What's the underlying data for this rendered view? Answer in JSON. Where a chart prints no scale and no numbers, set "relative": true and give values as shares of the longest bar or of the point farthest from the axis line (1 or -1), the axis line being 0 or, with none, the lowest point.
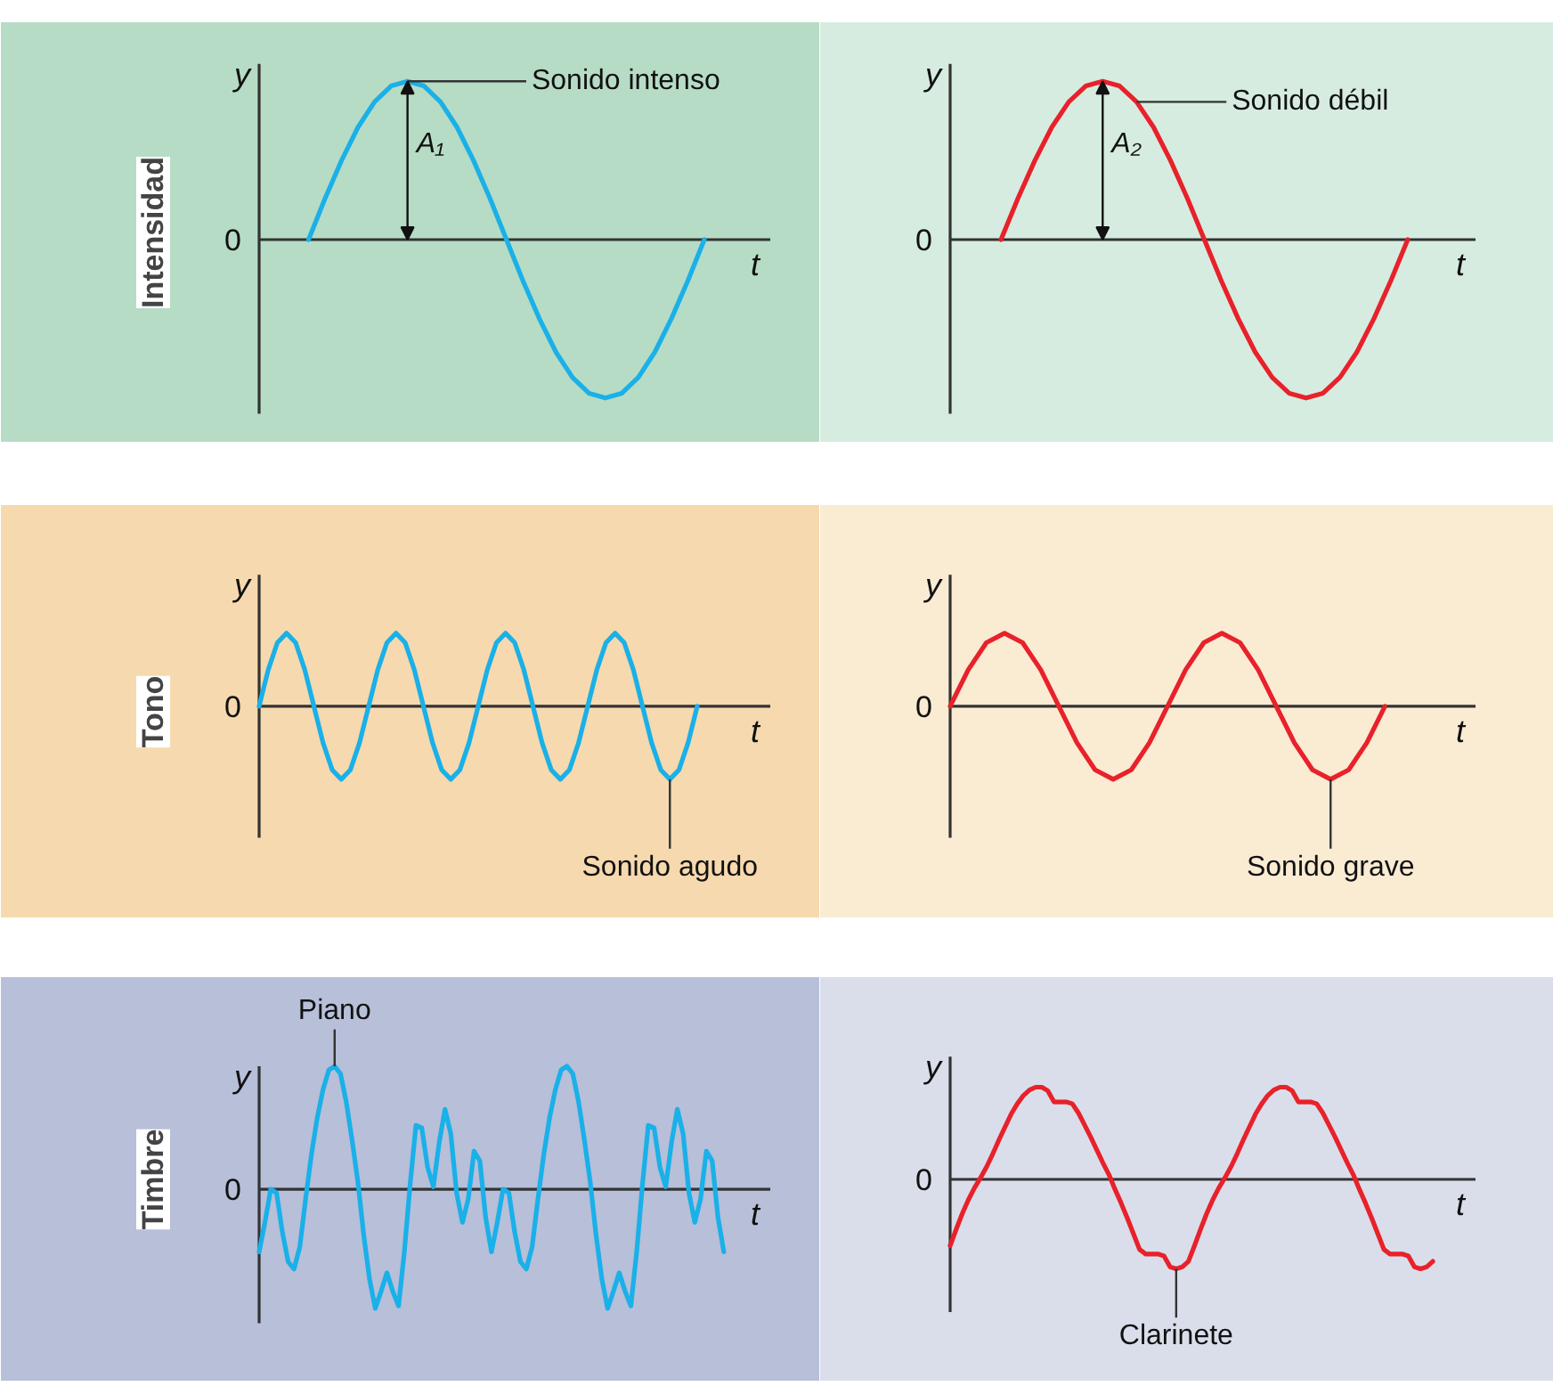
{
  "chart_data": [
    {
      "type": "line",
      "relative": true,
      "tick_labels": false,
      "title": "Intensidad",
      "xlabel": "t",
      "ylabel": "y",
      "categories": [
        null,
        null,
        null,
        null,
        null,
        null,
        null,
        null,
        null,
        null,
        null,
        null,
        null,
        null,
        null,
        null,
        null,
        null,
        null,
        null,
        null,
        null,
        null,
        null,
        null,
        null,
        null,
        null,
        null,
        null,
        null,
        null
      ],
      "series": [
        {
          "color": "#1ab0e8",
          "values": [
            null,
            null,
            null,
            0,
            0.26,
            0.5,
            0.71,
            0.87,
            0.97,
            1,
            0.97,
            0.87,
            0.71,
            0.5,
            0.26,
            0,
            -0.26,
            -0.5,
            -0.71,
            -0.87,
            -0.97,
            -1,
            -0.97,
            -0.87,
            -0.71,
            -0.5,
            -0.26,
            0,
            null,
            null,
            null,
            null
          ]
        }
      ],
      "annotations": [
        "Sonido intenso",
        "A₁",
        "0"
      ]
    },
    {
      "type": "line",
      "relative": true,
      "tick_labels": false,
      "xlabel": "t",
      "ylabel": "y",
      "categories": [
        null,
        null,
        null,
        null,
        null,
        null,
        null,
        null,
        null,
        null,
        null,
        null,
        null,
        null,
        null,
        null,
        null,
        null,
        null,
        null,
        null,
        null,
        null,
        null,
        null,
        null,
        null,
        null,
        null,
        null,
        null,
        null
      ],
      "series": [
        {
          "color": "#e8212b",
          "values": [
            null,
            null,
            null,
            0,
            0.26,
            0.5,
            0.71,
            0.87,
            0.97,
            1,
            0.97,
            0.87,
            0.71,
            0.5,
            0.26,
            0,
            -0.26,
            -0.5,
            -0.71,
            -0.87,
            -0.97,
            -1,
            -0.97,
            -0.87,
            -0.71,
            -0.5,
            -0.26,
            0,
            null,
            null,
            null,
            null
          ]
        }
      ],
      "annotations": [
        "Sonido débil",
        "A₂",
        "0"
      ]
    },
    {
      "type": "line",
      "relative": true,
      "tick_labels": false,
      "title": "Tono",
      "xlabel": "t",
      "ylabel": "y",
      "categories": [
        null,
        null,
        null,
        null,
        null,
        null,
        null,
        null,
        null,
        null,
        null,
        null,
        null,
        null,
        null,
        null,
        null,
        null,
        null,
        null,
        null,
        null,
        null,
        null,
        null,
        null,
        null,
        null,
        null,
        null,
        null,
        null,
        null,
        null,
        null,
        null,
        null,
        null,
        null,
        null,
        null,
        null,
        null,
        null,
        null,
        null,
        null,
        null,
        null,
        null,
        null,
        null,
        null,
        null,
        null,
        null,
        null
      ],
      "series": [
        {
          "color": "#1ab0e8",
          "values": [
            0,
            0.5,
            0.87,
            1,
            0.87,
            0.5,
            0,
            -0.5,
            -0.87,
            -1,
            -0.87,
            -0.5,
            0,
            0.5,
            0.87,
            1,
            0.87,
            0.5,
            0,
            -0.5,
            -0.87,
            -1,
            -0.87,
            -0.5,
            0,
            0.5,
            0.87,
            1,
            0.87,
            0.5,
            0,
            -0.5,
            -0.87,
            -1,
            -0.87,
            -0.5,
            0,
            0.5,
            0.87,
            1,
            0.87,
            0.5,
            0,
            -0.5,
            -0.87,
            -1,
            -0.87,
            -0.5,
            0,
            null,
            null,
            null,
            null,
            null,
            null,
            null,
            null
          ]
        }
      ],
      "annotations": [
        "Sonido agudo",
        "0"
      ]
    },
    {
      "type": "line",
      "relative": true,
      "tick_labels": false,
      "xlabel": "t",
      "ylabel": "y",
      "categories": [
        null,
        null,
        null,
        null,
        null,
        null,
        null,
        null,
        null,
        null,
        null,
        null,
        null,
        null,
        null,
        null,
        null,
        null,
        null,
        null,
        null,
        null,
        null,
        null,
        null,
        null,
        null,
        null,
        null,
        null
      ],
      "series": [
        {
          "color": "#e8212b",
          "values": [
            0,
            0.5,
            0.87,
            1,
            0.87,
            0.5,
            0,
            -0.5,
            -0.87,
            -1,
            -0.87,
            -0.5,
            0,
            0.5,
            0.87,
            1,
            0.87,
            0.5,
            0,
            -0.5,
            -0.87,
            -1,
            -0.87,
            -0.5,
            0,
            null,
            null,
            null,
            null,
            null
          ]
        }
      ],
      "annotations": [
        "Sonido grave",
        "0"
      ]
    },
    {
      "type": "line",
      "relative": true,
      "tick_labels": false,
      "title": "Timbre",
      "xlabel": "t",
      "ylabel": "y",
      "categories": [
        null,
        null,
        null,
        null,
        null,
        null,
        null,
        null,
        null,
        null,
        null,
        null,
        null,
        null,
        null,
        null,
        null,
        null,
        null,
        null,
        null,
        null,
        null,
        null,
        null,
        null,
        null,
        null,
        null,
        null,
        null,
        null,
        null,
        null,
        null,
        null,
        null,
        null,
        null,
        null,
        null,
        null,
        null,
        null,
        null,
        null,
        null,
        null,
        null,
        null,
        null,
        null,
        null,
        null,
        null,
        null,
        null,
        null,
        null,
        null,
        null,
        null,
        null,
        null,
        null,
        null,
        null,
        null,
        null,
        null,
        null,
        null,
        null,
        null,
        null,
        null,
        null,
        null,
        null,
        null,
        null,
        null,
        null,
        null,
        null,
        null,
        null,
        null,
        null
      ],
      "series": [
        {
          "color": "#1ab0e8",
          "values": [
            -0.51,
            -0.27,
            0.0,
            -0.03,
            -0.35,
            -0.59,
            -0.65,
            -0.47,
            -0.08,
            0.28,
            0.58,
            0.81,
            0.97,
            1.0,
            0.94,
            0.71,
            0.4,
            0.06,
            -0.37,
            -0.73,
            -0.97,
            -0.83,
            -0.68,
            -0.83,
            -0.95,
            -0.51,
            0.04,
            0.52,
            0.5,
            0.18,
            0.02,
            0.38,
            0.65,
            0.45,
            -0.03,
            -0.27,
            -0.08,
            0.31,
            0.23,
            -0.23,
            -0.51,
            -0.27,
            0.0,
            -0.03,
            -0.35,
            -0.59,
            -0.65,
            -0.47,
            -0.08,
            0.28,
            0.58,
            0.81,
            0.97,
            1.0,
            0.94,
            0.71,
            0.4,
            0.06,
            -0.37,
            -0.73,
            -0.97,
            -0.83,
            -0.68,
            -0.83,
            -0.95,
            -0.51,
            0.04,
            0.52,
            0.5,
            0.18,
            0.02,
            0.38,
            0.65,
            0.45,
            -0.03,
            -0.27,
            -0.08,
            0.31,
            0.23,
            -0.23,
            -0.51,
            null,
            null,
            null,
            null,
            null,
            null,
            null,
            null
          ]
        }
      ],
      "annotations": [
        "Piano",
        "0"
      ]
    },
    {
      "type": "line",
      "relative": true,
      "tick_labels": false,
      "xlabel": "t",
      "ylabel": "y",
      "categories": [
        null,
        null,
        null,
        null,
        null,
        null,
        null,
        null,
        null,
        null,
        null,
        null,
        null,
        null,
        null,
        null,
        null,
        null,
        null,
        null,
        null,
        null,
        null,
        null,
        null,
        null,
        null,
        null,
        null,
        null,
        null,
        null,
        null,
        null,
        null,
        null,
        null,
        null,
        null,
        null,
        null,
        null,
        null,
        null,
        null,
        null,
        null,
        null,
        null,
        null,
        null,
        null,
        null,
        null,
        null,
        null,
        null,
        null,
        null,
        null,
        null,
        null,
        null,
        null,
        null,
        null,
        null,
        null,
        null,
        null,
        null,
        null,
        null,
        null,
        null,
        null,
        null,
        null,
        null,
        null,
        null,
        null,
        null,
        null,
        null,
        null,
        null
      ],
      "series": [
        {
          "color": "#e8212b",
          "values": [
            -0.72,
            -0.54,
            -0.37,
            -0.22,
            -0.09,
            0.02,
            0.14,
            0.28,
            0.43,
            0.57,
            0.71,
            0.82,
            0.91,
            0.97,
            1.0,
            1.0,
            0.96,
            0.84,
            0.84,
            0.84,
            0.82,
            0.72,
            0.59,
            0.46,
            0.32,
            0.18,
            0.05,
            -0.11,
            -0.26,
            -0.42,
            -0.59,
            -0.76,
            -0.81,
            -0.81,
            -0.81,
            -0.83,
            -0.95,
            -0.97,
            -0.95,
            -0.89,
            -0.72,
            -0.54,
            -0.37,
            -0.22,
            -0.09,
            0.02,
            0.14,
            0.28,
            0.43,
            0.57,
            0.71,
            0.82,
            0.91,
            0.97,
            1.0,
            1.0,
            0.96,
            0.84,
            0.84,
            0.84,
            0.82,
            0.72,
            0.59,
            0.46,
            0.32,
            0.18,
            0.05,
            -0.11,
            -0.26,
            -0.42,
            -0.59,
            -0.76,
            -0.81,
            -0.81,
            -0.81,
            -0.83,
            -0.95,
            -0.97,
            -0.95,
            -0.89,
            null,
            null,
            null,
            null,
            null,
            null,
            null
          ]
        }
      ],
      "annotations": [
        "Clarinete",
        "0"
      ]
    }
  ]
}
